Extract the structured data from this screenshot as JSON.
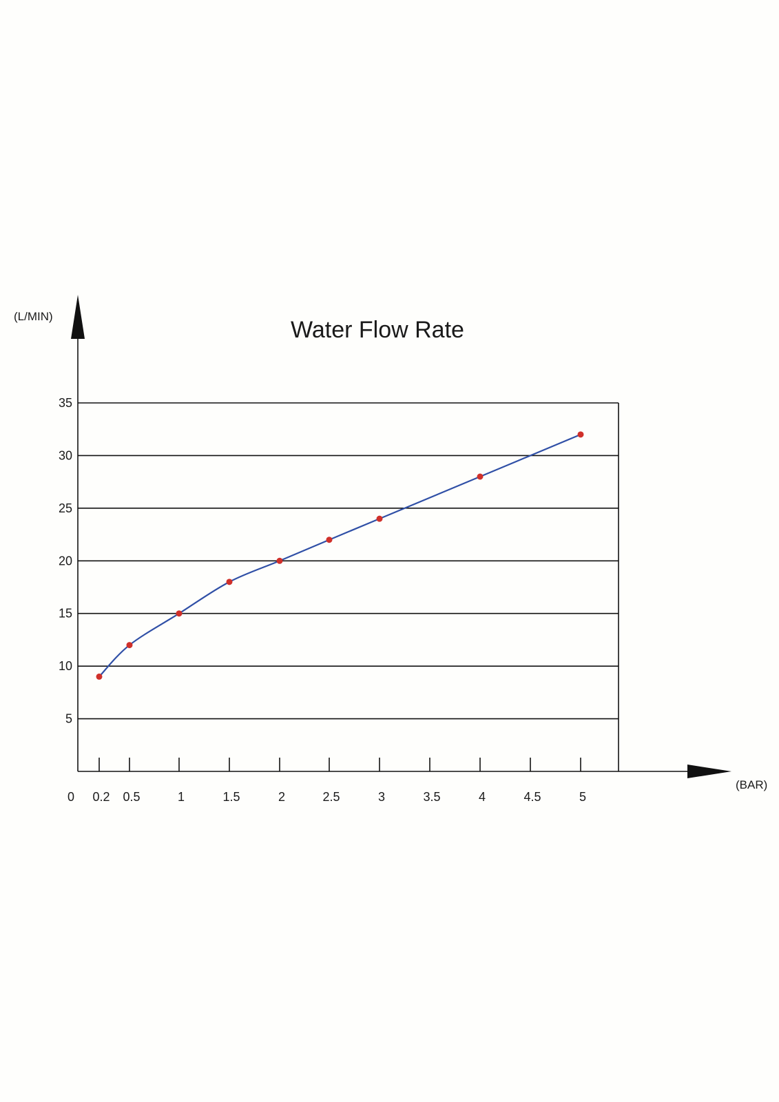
{
  "chart_data": {
    "type": "line",
    "title": "Water Flow Rate",
    "xlabel": "(BAR)",
    "ylabel": "(L/MIN)",
    "origin_label": "0",
    "x_ticks": [
      "0.2",
      "0.5",
      "1",
      "1.5",
      "2",
      "2.5",
      "3",
      "3.5",
      "4",
      "4.5",
      "5"
    ],
    "y_ticks": [
      "5",
      "10",
      "15",
      "20",
      "25",
      "30",
      "35"
    ],
    "ylim": [
      0,
      35
    ],
    "grid": true,
    "legend": "none",
    "line_color": "#2f4fa6",
    "marker_color": "#d0302a",
    "series": [
      {
        "x": [
          "0.2",
          "0.5",
          "1",
          "1.5",
          "2",
          "2.5",
          "3",
          "4",
          "5"
        ],
        "values": [
          9,
          12,
          15,
          18,
          20,
          22,
          24,
          28,
          32
        ]
      }
    ]
  }
}
